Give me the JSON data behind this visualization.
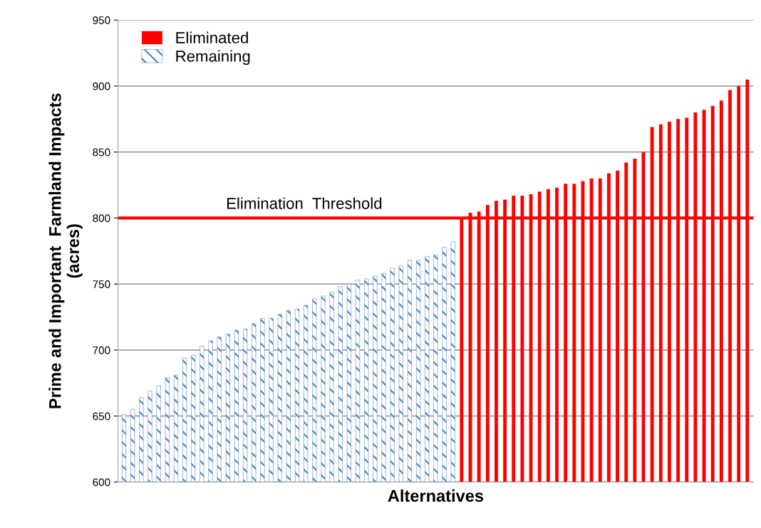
{
  "chart_data": {
    "type": "bar",
    "xlabel": "Alternatives",
    "ylabel": "Prime and Important  Farmland Impacts\n(acres)",
    "categories": [
      null,
      null,
      null,
      null,
      null,
      null,
      null,
      null,
      null,
      null,
      null,
      null,
      null,
      null,
      null,
      null,
      null,
      null,
      null,
      null,
      null,
      null,
      null,
      null,
      null,
      null,
      null,
      null,
      null,
      null,
      null,
      null,
      null,
      null,
      null,
      null,
      null,
      null,
      null,
      null,
      null,
      null,
      null,
      null,
      null,
      null,
      null,
      null,
      null,
      null,
      null,
      null,
      null,
      null,
      null,
      null,
      null,
      null,
      null,
      null,
      null,
      null,
      null,
      null,
      null,
      null,
      null,
      null,
      null,
      null,
      null,
      null,
      null
    ],
    "series": [
      {
        "name": "Eliminated",
        "color": "#ff0000",
        "values": [
          null,
          null,
          null,
          null,
          null,
          null,
          null,
          null,
          null,
          null,
          null,
          null,
          null,
          null,
          null,
          null,
          null,
          null,
          null,
          null,
          null,
          null,
          null,
          null,
          null,
          null,
          null,
          null,
          null,
          null,
          null,
          null,
          null,
          null,
          null,
          null,
          null,
          null,
          null,
          800,
          804,
          805,
          810,
          813,
          814,
          817,
          817,
          818,
          820,
          822,
          823,
          826,
          826,
          828,
          830,
          830,
          834,
          836,
          842,
          845,
          850,
          869,
          871,
          873,
          875,
          876,
          880,
          882,
          885,
          889,
          897,
          900,
          905
        ]
      },
      {
        "name": "Remaining",
        "color": "#4f81bd",
        "values": [
          651,
          655,
          664,
          669,
          673,
          679,
          681,
          694,
          696,
          703,
          707,
          710,
          712,
          715,
          716,
          720,
          724,
          724,
          727,
          730,
          731,
          734,
          739,
          741,
          744,
          748,
          750,
          753,
          754,
          756,
          758,
          762,
          764,
          768,
          768,
          771,
          772,
          778,
          782,
          null,
          null,
          null,
          null,
          null,
          null,
          null,
          null,
          null,
          null,
          null,
          null,
          null,
          null,
          null,
          null,
          null,
          null,
          null,
          null,
          null,
          null,
          null,
          null,
          null,
          null,
          null,
          null,
          null,
          null,
          null,
          null,
          null,
          null
        ]
      }
    ],
    "ylim": [
      600,
      950
    ],
    "yticks": [
      600,
      650,
      700,
      750,
      800,
      850,
      900,
      950
    ],
    "ref_lines": [
      {
        "axis": "y",
        "value": 800,
        "label": "Elimination  Threshold",
        "color": "#ff0000"
      }
    ],
    "grid": "y",
    "legend": "top left"
  }
}
